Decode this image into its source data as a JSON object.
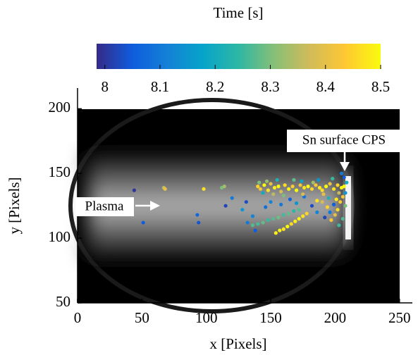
{
  "chart_data": {
    "type": "scatter",
    "colorbar_label": "Time [s]",
    "xlabel": "x [Pixels]",
    "ylabel": "y [Pixels]",
    "xlim": [
      0,
      260
    ],
    "ylim": [
      50,
      216
    ],
    "xticks": [
      0,
      50,
      100,
      150,
      200,
      250
    ],
    "yticks": [
      50,
      100,
      150,
      200
    ],
    "clim": [
      7.985,
      8.5
    ],
    "cticks": [
      8,
      8.1,
      8.2,
      8.3,
      8.4,
      8.5
    ],
    "colormap": [
      "#352a87",
      "#0f5cdd",
      "#1481d6",
      "#06a4ca",
      "#2eb7a4",
      "#87bf77",
      "#d1bb59",
      "#fec832",
      "#f9fb0e"
    ],
    "annotations": [
      "Sn surface CPS",
      "Plasma"
    ],
    "x": [
      44,
      51,
      67,
      68,
      98,
      112,
      114,
      93,
      94,
      115,
      120,
      128,
      131,
      136,
      154,
      157,
      160,
      163,
      166,
      169,
      172,
      175,
      178,
      136,
      140,
      144,
      148,
      152,
      156,
      160,
      164,
      168,
      172,
      132,
      138,
      146,
      150,
      158,
      165,
      170,
      176,
      182,
      186,
      140,
      142,
      145,
      148,
      150,
      153,
      156,
      158,
      161,
      164,
      167,
      170,
      173,
      176,
      179,
      182,
      185,
      188,
      190,
      193,
      196,
      199,
      202,
      205,
      141,
      147,
      152,
      160,
      168,
      175,
      183,
      191,
      198,
      203,
      144,
      155,
      174,
      187,
      195,
      205,
      207,
      206,
      204,
      208,
      202,
      200,
      206,
      203,
      199,
      196,
      208,
      201,
      197,
      194,
      190,
      192,
      186,
      207,
      209
    ],
    "y": [
      137,
      112,
      139,
      138,
      138,
      139,
      140,
      118,
      112,
      125,
      131,
      122,
      128,
      117,
      104,
      106,
      107,
      109,
      111,
      113,
      115,
      117,
      119,
      110,
      111,
      112,
      114,
      115,
      116,
      118,
      119,
      121,
      122,
      112,
      106,
      124,
      128,
      126,
      130,
      127,
      132,
      125,
      120,
      140,
      138,
      141,
      137,
      142,
      139,
      140,
      136,
      141,
      138,
      140,
      137,
      141,
      139,
      140,
      138,
      141,
      139,
      137,
      140,
      142,
      138,
      141,
      139,
      143,
      144,
      134,
      133,
      145,
      134,
      143,
      134,
      146,
      135,
      135,
      145,
      144,
      145,
      131,
      150,
      147,
      132,
      128,
      125,
      122,
      118,
      115,
      110,
      126,
      120,
      135,
      130,
      114,
      124,
      128,
      116,
      129,
      140,
      143
    ],
    "c": [
      8.0,
      8.05,
      8.36,
      8.4,
      8.47,
      8.3,
      8.33,
      8.07,
      8.04,
      8.02,
      8.1,
      8.15,
      8.03,
      8.12,
      8.48,
      8.49,
      8.47,
      8.5,
      8.46,
      8.48,
      8.49,
      8.47,
      8.45,
      8.27,
      8.26,
      8.28,
      8.25,
      8.27,
      8.29,
      8.26,
      8.28,
      8.24,
      8.27,
      8.1,
      8.05,
      8.08,
      8.12,
      8.1,
      8.06,
      8.15,
      8.09,
      8.03,
      8.12,
      8.45,
      8.42,
      8.5,
      8.47,
      8.4,
      8.48,
      8.5,
      8.38,
      8.46,
      8.49,
      8.44,
      8.5,
      8.42,
      8.47,
      8.5,
      8.45,
      8.43,
      8.48,
      8.46,
      8.5,
      8.41,
      8.47,
      8.45,
      8.49,
      8.3,
      8.32,
      8.35,
      8.3,
      8.28,
      8.38,
      8.33,
      8.4,
      8.25,
      8.36,
      8.2,
      8.22,
      8.18,
      8.15,
      8.22,
      8.1,
      8.05,
      8.42,
      8.44,
      8.3,
      8.46,
      8.4,
      8.27,
      8.25,
      8.05,
      8.1,
      8.15,
      8.48,
      8.43,
      8.45,
      8.38,
      8.02,
      8.47,
      8.5,
      8.2
    ]
  }
}
